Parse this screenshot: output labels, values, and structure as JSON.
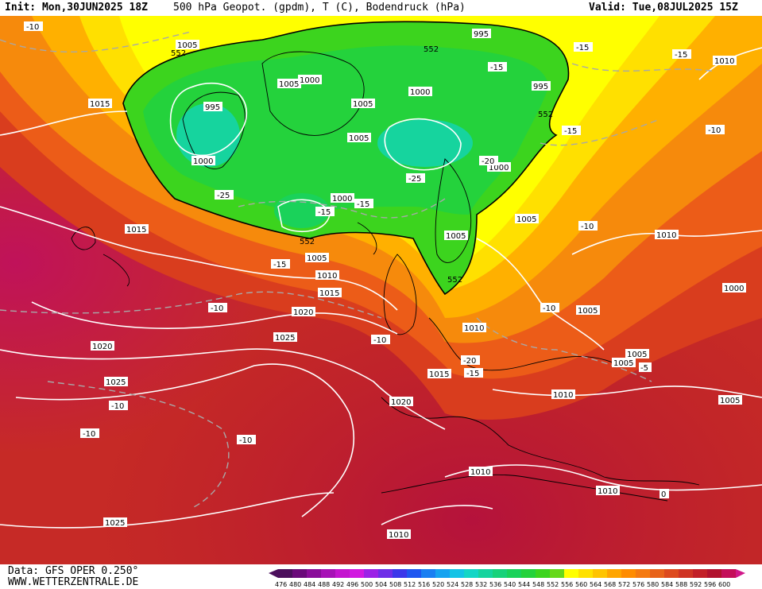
{
  "header": {
    "init": "Init: Mon,30JUN2025 18Z",
    "title": "500 hPa Geopot. (gpdm), T (C), Bodendruck (hPa)",
    "valid": "Valid: Tue,08JUL2025 15Z"
  },
  "footer": {
    "data_source": "Data: GFS OPER 0.250°",
    "website": "WWW.WETTERZENTRALE.DE"
  },
  "legend": {
    "ticks": [
      "476",
      "480",
      "484",
      "488",
      "492",
      "496",
      "500",
      "504",
      "508",
      "512",
      "516",
      "520",
      "524",
      "528",
      "532",
      "536",
      "540",
      "544",
      "548",
      "552",
      "556",
      "560",
      "564",
      "568",
      "572",
      "576",
      "580",
      "584",
      "588",
      "592",
      "596",
      "600"
    ],
    "colors": [
      "#4b0f5c",
      "#6a0a7a",
      "#8a0d9a",
      "#a711b6",
      "#c414cf",
      "#d119e0",
      "#9b22e6",
      "#6e2ee8",
      "#3b37ea",
      "#1f56f0",
      "#1a7ff2",
      "#16a3f0",
      "#14c3e6",
      "#14d6c6",
      "#16d49e",
      "#18d27a",
      "#1ad25a",
      "#24d23c",
      "#3cd41e",
      "#66d81a",
      "#ffff00",
      "#ffe100",
      "#ffc400",
      "#ffa500",
      "#ff8c00",
      "#f57a10",
      "#e8631a",
      "#dd4a1e",
      "#cf3424",
      "#c22028",
      "#b1122e",
      "#c40f5a"
    ]
  },
  "pressure_labels": [
    {
      "text": "995",
      "name": "isobar-995"
    },
    {
      "text": "1005",
      "name": "isobar-1005"
    },
    {
      "text": "1000",
      "name": "isobar-1000"
    },
    {
      "text": "1015",
      "name": "isobar-1015"
    },
    {
      "text": "1010",
      "name": "isobar-1010"
    },
    {
      "text": "1020",
      "name": "isobar-1020"
    },
    {
      "text": "1025",
      "name": "isobar-1025"
    },
    {
      "text": "-10",
      "name": "temp-minus10"
    },
    {
      "text": "-15",
      "name": "temp-minus15"
    },
    {
      "text": "-20",
      "name": "temp-minus20"
    },
    {
      "text": "-25",
      "name": "temp-minus25"
    },
    {
      "text": "552",
      "name": "geopot-552"
    },
    {
      "text": "0",
      "name": "temp-zero"
    }
  ]
}
